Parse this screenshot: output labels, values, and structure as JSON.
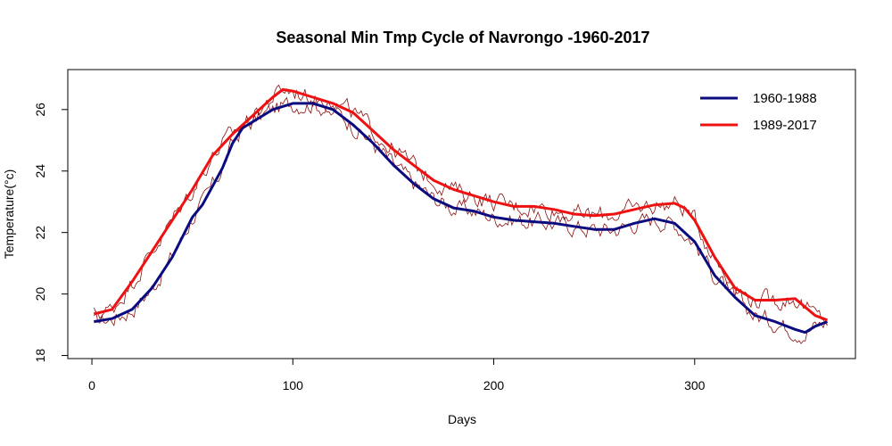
{
  "chart_data": {
    "type": "line",
    "title": "Seasonal Min Tmp Cycle of Navrongo -1960-2017",
    "xlabel": "Days",
    "ylabel": "Temperature(°c)",
    "xlim": [
      -12,
      380
    ],
    "ylim": [
      17.9,
      27.3
    ],
    "x_ticks": [
      0,
      100,
      200,
      300
    ],
    "y_ticks": [
      18,
      20,
      22,
      24,
      26
    ],
    "grid": false,
    "legend_position": "top-right",
    "series": [
      {
        "name": "1960-1988",
        "color": "#0b0b80",
        "x": [
          1,
          10,
          20,
          30,
          40,
          50,
          55,
          60,
          65,
          70,
          75,
          80,
          90,
          100,
          110,
          120,
          130,
          140,
          150,
          160,
          170,
          180,
          190,
          200,
          210,
          220,
          230,
          240,
          250,
          260,
          270,
          280,
          290,
          300,
          310,
          320,
          330,
          340,
          350,
          355,
          360,
          366
        ],
        "y": [
          19.1,
          19.2,
          19.5,
          20.2,
          21.2,
          22.5,
          22.9,
          23.5,
          24.1,
          24.9,
          25.4,
          25.6,
          26.0,
          26.2,
          26.2,
          26.0,
          25.5,
          24.9,
          24.2,
          23.6,
          23.1,
          22.8,
          22.7,
          22.5,
          22.4,
          22.35,
          22.3,
          22.2,
          22.1,
          22.1,
          22.3,
          22.45,
          22.3,
          21.7,
          20.6,
          19.9,
          19.3,
          19.1,
          18.85,
          18.75,
          18.95,
          19.1
        ]
      },
      {
        "name": "1989-2017",
        "color": "#ee1111",
        "x": [
          1,
          10,
          20,
          30,
          40,
          50,
          60,
          70,
          80,
          90,
          95,
          100,
          110,
          120,
          130,
          140,
          150,
          160,
          170,
          180,
          190,
          200,
          210,
          220,
          230,
          240,
          250,
          260,
          270,
          280,
          290,
          295,
          300,
          310,
          320,
          330,
          340,
          350,
          360,
          366
        ],
        "y": [
          19.35,
          19.5,
          20.4,
          21.4,
          22.4,
          23.4,
          24.5,
          25.2,
          25.8,
          26.4,
          26.65,
          26.6,
          26.4,
          26.2,
          25.9,
          25.3,
          24.7,
          24.2,
          23.7,
          23.4,
          23.2,
          23.0,
          22.85,
          22.85,
          22.75,
          22.6,
          22.55,
          22.6,
          22.75,
          22.9,
          22.95,
          22.8,
          22.4,
          21.2,
          20.2,
          19.8,
          19.8,
          19.85,
          19.3,
          19.15
        ]
      }
    ]
  }
}
